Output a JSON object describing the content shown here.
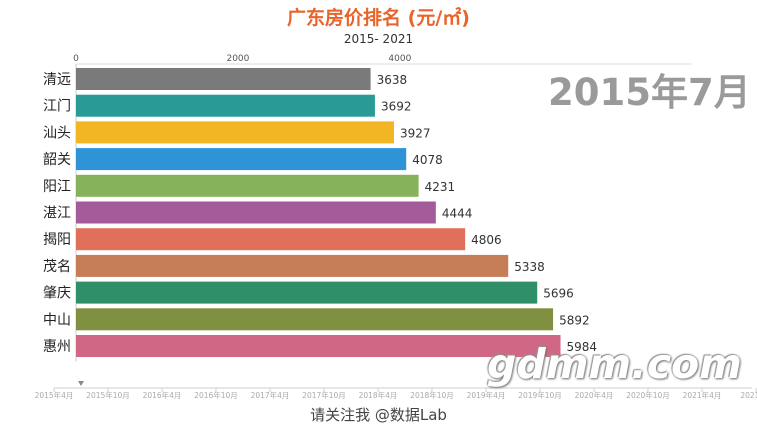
{
  "title": "广东房价排名 (元/㎡)",
  "subtitle": "2015- 2021",
  "period_label": "2015年7月",
  "watermark": "gdmm.com",
  "footer": "请关注我 @数据Lab",
  "chart_data": {
    "type": "bar",
    "orientation": "horizontal",
    "categories": [
      "清远",
      "江门",
      "汕头",
      "韶关",
      "阳江",
      "湛江",
      "揭阳",
      "茂名",
      "肇庆",
      "中山",
      "惠州"
    ],
    "values": [
      3638,
      3692,
      3927,
      4078,
      4231,
      4444,
      4806,
      5338,
      5696,
      5892,
      5984
    ],
    "colors": [
      "#7a7a7a",
      "#2a9a96",
      "#f2b523",
      "#2f93d8",
      "#86b25c",
      "#a35b9a",
      "#e0705a",
      "#c57e55",
      "#2f8f68",
      "#7f9040",
      "#d06885"
    ],
    "xticks": [
      0,
      2000,
      4000
    ],
    "xlim": [
      0,
      7600
    ],
    "timeline": {
      "ticks": [
        "2015年4月",
        "2015年10月",
        "2016年4月",
        "2016年10月",
        "2017年4月",
        "2017年10月",
        "2018年4月",
        "2018年10月",
        "2019年4月",
        "2019年10月",
        "2020年4月",
        "2020年10月",
        "2021年4月",
        "2021年1"
      ],
      "current": "2015年7月"
    }
  }
}
